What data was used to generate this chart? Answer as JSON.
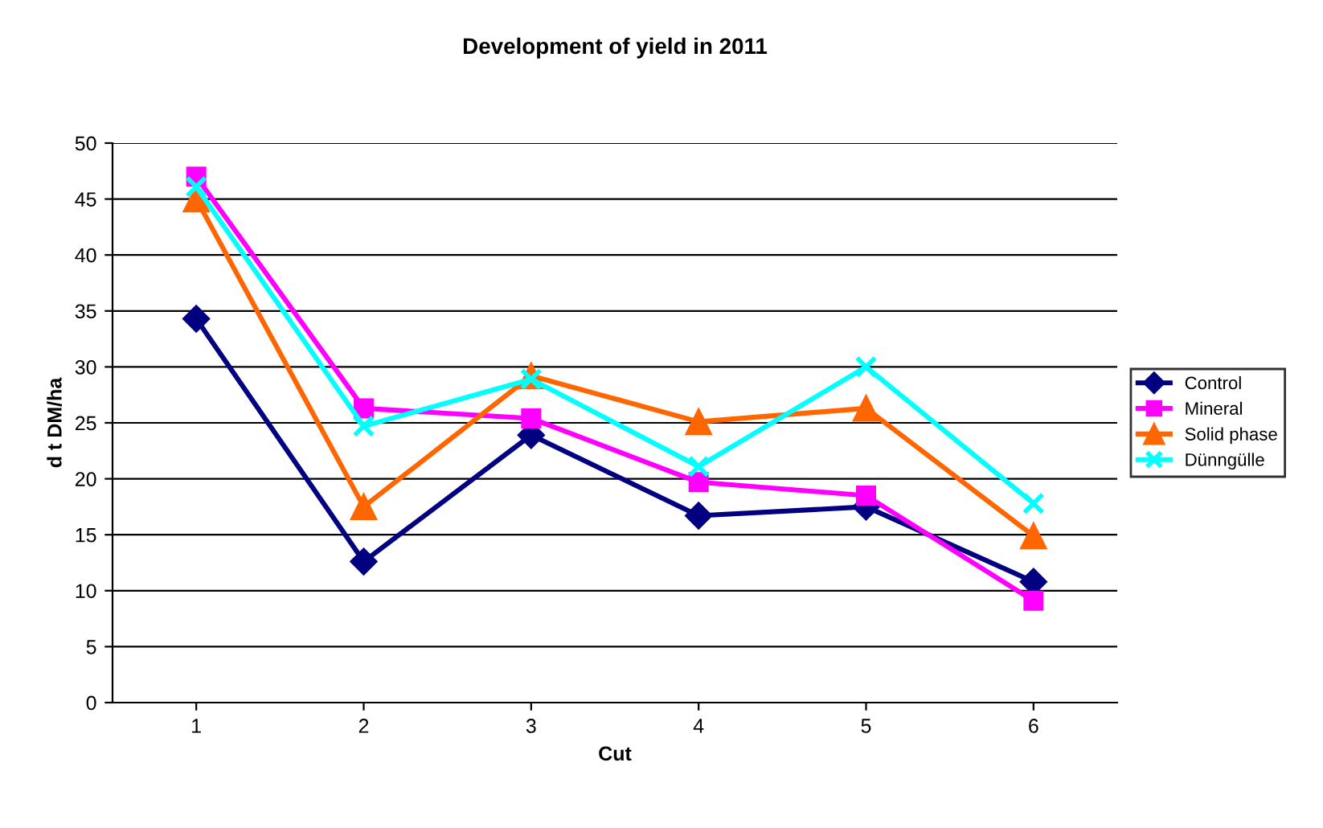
{
  "chart_data": {
    "type": "line",
    "title": "Development of yield in 2011",
    "xlabel": "Cut",
    "ylabel": "d t DM/ha",
    "categories": [
      "1",
      "2",
      "3",
      "4",
      "5",
      "6"
    ],
    "series": [
      {
        "name": "Control",
        "color": "#000080",
        "marker": "diamond",
        "values": [
          34.3,
          12.6,
          23.9,
          16.7,
          17.5,
          10.8
        ]
      },
      {
        "name": "Mineral",
        "color": "#ff00ff",
        "marker": "square",
        "values": [
          47.0,
          26.3,
          25.4,
          19.7,
          18.5,
          9.1
        ]
      },
      {
        "name": "Solid phase",
        "color": "#ff6600",
        "marker": "triangle",
        "values": [
          45.0,
          17.5,
          29.2,
          25.1,
          26.3,
          14.9
        ]
      },
      {
        "name": "Dünngülle",
        "color": "#00ffff",
        "marker": "cross",
        "values": [
          46.1,
          24.7,
          28.9,
          21.1,
          30.0,
          17.8
        ]
      }
    ],
    "ylim": [
      0,
      50
    ],
    "yticks": [
      0,
      5,
      10,
      15,
      20,
      25,
      30,
      35,
      40,
      45,
      50
    ],
    "grid": "y",
    "legend": "right",
    "line_style": "solid"
  }
}
